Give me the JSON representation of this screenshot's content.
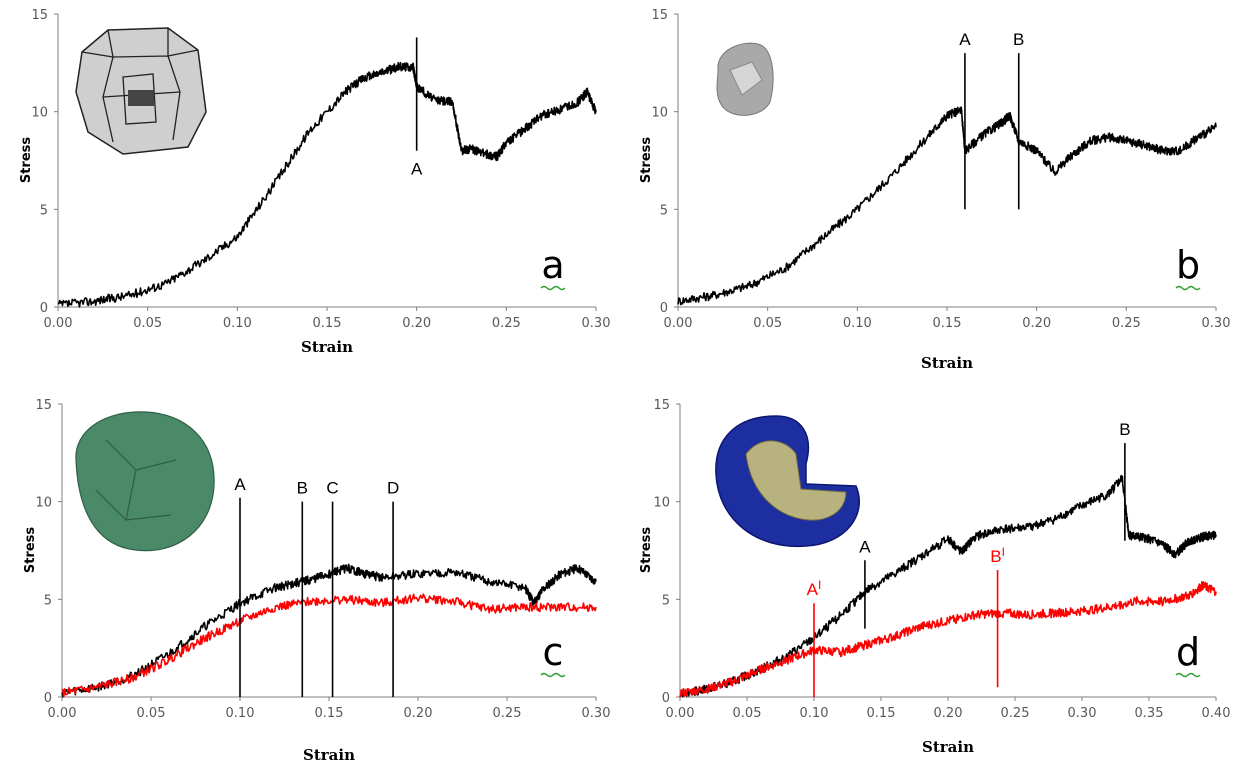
{
  "chart_data": [
    {
      "panel_label": "a",
      "type": "line",
      "xlabel": "Strain",
      "ylabel": "Stress",
      "xlim": [
        0,
        0.3
      ],
      "ylim": [
        0,
        15
      ],
      "xticks": [
        "0.00",
        "0.05",
        "0.10",
        "0.15",
        "0.20",
        "0.25",
        "0.30"
      ],
      "yticks": [
        "0",
        "5",
        "10",
        "15"
      ],
      "grid": false,
      "inset": "faceted-grain",
      "series": [
        {
          "color": "#000000",
          "x": [
            0,
            0.02,
            0.04,
            0.06,
            0.08,
            0.1,
            0.12,
            0.14,
            0.16,
            0.17,
            0.18,
            0.19,
            0.198,
            0.2,
            0.21,
            0.22,
            0.225,
            0.23,
            0.24,
            0.245,
            0.25,
            0.26,
            0.27,
            0.28,
            0.29,
            0.295,
            0.3
          ],
          "y": [
            0.1,
            0.3,
            0.6,
            1.2,
            2.3,
            3.6,
            6.2,
            9.0,
            11.0,
            11.7,
            12.0,
            12.3,
            12.3,
            11.3,
            10.6,
            10.5,
            8.0,
            8.1,
            7.8,
            7.7,
            8.4,
            9.1,
            9.8,
            10.1,
            10.5,
            11.0,
            10.0
          ]
        }
      ],
      "markers": [
        {
          "label": "A",
          "x": 0.2,
          "y_from": 8.0,
          "y_to": 13.8,
          "color": "#000000",
          "label_pos": "below"
        }
      ]
    },
    {
      "panel_label": "b",
      "type": "line",
      "xlabel": "Strain",
      "ylabel": "Stress",
      "xlim": [
        0,
        0.3
      ],
      "ylim": [
        0,
        15
      ],
      "xticks": [
        "0.00",
        "0.05",
        "0.10",
        "0.15",
        "0.20",
        "0.25",
        "0.30"
      ],
      "yticks": [
        "0",
        "5",
        "10",
        "15"
      ],
      "grid": false,
      "inset": "grey-grain",
      "series": [
        {
          "color": "#000000",
          "x": [
            0,
            0.02,
            0.04,
            0.06,
            0.08,
            0.1,
            0.12,
            0.14,
            0.15,
            0.158,
            0.16,
            0.17,
            0.18,
            0.185,
            0.19,
            0.2,
            0.21,
            0.22,
            0.23,
            0.24,
            0.25,
            0.26,
            0.27,
            0.28,
            0.29,
            0.3
          ],
          "y": [
            0.3,
            0.6,
            1.1,
            2.0,
            3.5,
            5.0,
            6.8,
            8.8,
            9.8,
            10.1,
            8.0,
            8.8,
            9.4,
            9.8,
            8.5,
            8.0,
            6.9,
            7.8,
            8.5,
            8.7,
            8.5,
            8.3,
            8.0,
            8.0,
            8.7,
            9.2
          ]
        }
      ],
      "markers": [
        {
          "label": "A",
          "x": 0.16,
          "y_from": 5.0,
          "y_to": 13.0,
          "color": "#000000",
          "label_pos": "above"
        },
        {
          "label": "B",
          "x": 0.19,
          "y_from": 5.0,
          "y_to": 13.0,
          "color": "#000000",
          "label_pos": "above"
        }
      ]
    },
    {
      "panel_label": "c",
      "type": "line",
      "xlabel": "Strain",
      "ylabel": "Stress",
      "xlim": [
        0,
        0.3
      ],
      "ylim": [
        0,
        15
      ],
      "xticks": [
        "0.00",
        "0.05",
        "0.10",
        "0.15",
        "0.20",
        "0.25",
        "0.30"
      ],
      "yticks": [
        "0",
        "5",
        "10",
        "15"
      ],
      "grid": false,
      "inset": "green-grain",
      "series": [
        {
          "color": "#000000",
          "x": [
            0,
            0.02,
            0.04,
            0.06,
            0.08,
            0.1,
            0.12,
            0.13,
            0.14,
            0.15,
            0.16,
            0.17,
            0.18,
            0.2,
            0.22,
            0.24,
            0.26,
            0.265,
            0.27,
            0.28,
            0.29,
            0.3
          ],
          "y": [
            0.2,
            0.5,
            1.1,
            2.2,
            3.6,
            4.8,
            5.6,
            5.8,
            6.0,
            6.3,
            6.6,
            6.3,
            6.1,
            6.3,
            6.4,
            5.9,
            5.6,
            4.8,
            5.5,
            6.3,
            6.6,
            5.9
          ]
        },
        {
          "color": "#ff0000",
          "x": [
            0,
            0.02,
            0.04,
            0.06,
            0.08,
            0.1,
            0.12,
            0.14,
            0.16,
            0.18,
            0.2,
            0.22,
            0.24,
            0.26,
            0.28,
            0.3
          ],
          "y": [
            0.2,
            0.5,
            1.0,
            1.9,
            3.0,
            3.9,
            4.6,
            4.9,
            5.0,
            4.8,
            5.1,
            4.9,
            4.5,
            4.6,
            4.6,
            4.6
          ]
        }
      ],
      "markers": [
        {
          "label": "A",
          "x": 0.1,
          "y_from": 0,
          "y_to": 10.2,
          "color": "#000000",
          "label_pos": "above"
        },
        {
          "label": "B",
          "x": 0.135,
          "y_from": 0,
          "y_to": 10.0,
          "color": "#000000",
          "label_pos": "above"
        },
        {
          "label": "C",
          "x": 0.152,
          "y_from": 0,
          "y_to": 10.0,
          "color": "#000000",
          "label_pos": "above"
        },
        {
          "label": "D",
          "x": 0.186,
          "y_from": 0,
          "y_to": 10.0,
          "color": "#000000",
          "label_pos": "above"
        }
      ]
    },
    {
      "panel_label": "d",
      "type": "line",
      "xlabel": "Strain",
      "ylabel": "Stress",
      "xlim": [
        0,
        0.4
      ],
      "ylim": [
        0,
        15
      ],
      "xticks": [
        "0.00",
        "0.05",
        "0.10",
        "0.15",
        "0.20",
        "0.25",
        "0.30",
        "0.35",
        "0.40"
      ],
      "yticks": [
        "0",
        "5",
        "10",
        "15"
      ],
      "grid": false,
      "inset": "blue-grain-cutaway",
      "series": [
        {
          "color": "#000000",
          "x": [
            0,
            0.02,
            0.04,
            0.06,
            0.08,
            0.1,
            0.12,
            0.14,
            0.16,
            0.18,
            0.2,
            0.21,
            0.22,
            0.24,
            0.26,
            0.28,
            0.3,
            0.32,
            0.33,
            0.335,
            0.34,
            0.35,
            0.36,
            0.37,
            0.38,
            0.39,
            0.4
          ],
          "y": [
            0.2,
            0.4,
            0.8,
            1.4,
            2.1,
            3.0,
            4.2,
            5.5,
            6.3,
            7.2,
            8.1,
            7.4,
            8.2,
            8.6,
            8.7,
            9.1,
            9.8,
            10.4,
            11.2,
            8.3,
            8.2,
            8.1,
            7.8,
            7.3,
            8.0,
            8.2,
            8.3
          ]
        },
        {
          "color": "#ff0000",
          "x": [
            0,
            0.02,
            0.04,
            0.06,
            0.08,
            0.1,
            0.12,
            0.14,
            0.16,
            0.18,
            0.2,
            0.22,
            0.24,
            0.26,
            0.28,
            0.3,
            0.32,
            0.34,
            0.36,
            0.38,
            0.39,
            0.4
          ],
          "y": [
            0.2,
            0.4,
            0.8,
            1.4,
            1.9,
            2.4,
            2.3,
            2.7,
            3.1,
            3.6,
            3.9,
            4.2,
            4.3,
            4.2,
            4.3,
            4.4,
            4.6,
            4.9,
            4.9,
            5.2,
            5.7,
            5.4
          ]
        }
      ],
      "markers": [
        {
          "label": "A",
          "x": 0.138,
          "y_from": 3.5,
          "y_to": 7.0,
          "color": "#000000",
          "label_pos": "above"
        },
        {
          "label": "B",
          "x": 0.332,
          "y_from": 8.0,
          "y_to": 13.0,
          "color": "#000000",
          "label_pos": "above"
        },
        {
          "label": "A",
          "label_sup": "I",
          "x": 0.1,
          "y_from": 0,
          "y_to": 4.8,
          "color": "#ff0000",
          "label_pos": "above"
        },
        {
          "label": "B",
          "label_sup": "I",
          "x": 0.237,
          "y_from": 0.5,
          "y_to": 6.5,
          "color": "#ff0000",
          "label_pos": "above"
        }
      ]
    }
  ]
}
